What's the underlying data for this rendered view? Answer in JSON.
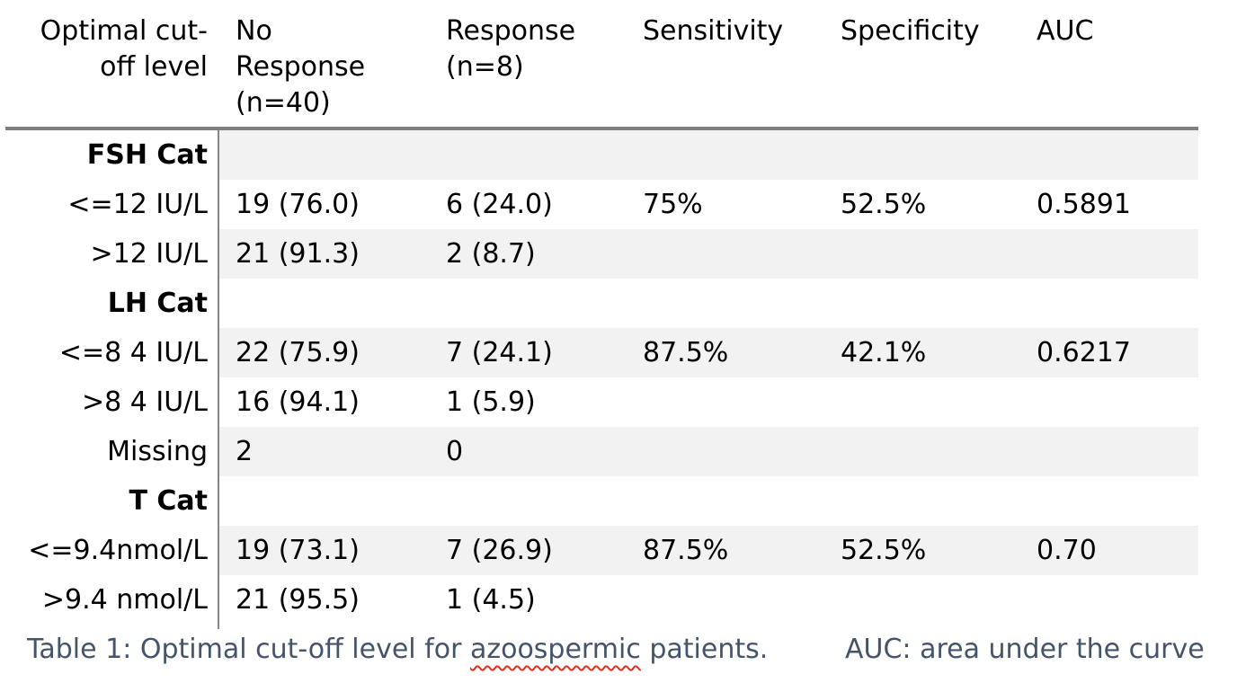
{
  "table": {
    "header": {
      "col1": {
        "lines": [
          "Optimal cut-",
          "off level"
        ]
      },
      "col2": {
        "lines": [
          "No",
          "Response",
          "(n=40)"
        ]
      },
      "col3": {
        "lines": [
          "Response",
          "(n=8)"
        ]
      },
      "col4": {
        "lines": [
          "Sensitivity"
        ]
      },
      "col5": {
        "lines": [
          "Specificity"
        ]
      },
      "col6": {
        "lines": [
          "AUC"
        ]
      }
    },
    "rows": [
      {
        "label": "FSH Cat",
        "cells": [
          "",
          "",
          "",
          "",
          ""
        ]
      },
      {
        "label": "<=12 IU/L",
        "cells": [
          "19 (76.0)",
          "6 (24.0)",
          "75%",
          "52.5%",
          "0.5891"
        ]
      },
      {
        "label": ">12 IU/L",
        "cells": [
          "21 (91.3)",
          "2 (8.7)",
          "",
          "",
          ""
        ]
      },
      {
        "label": "LH Cat",
        "cells": [
          "",
          "",
          "",
          "",
          ""
        ]
      },
      {
        "label": "<=8 4 IU/L",
        "cells": [
          "22 (75.9)",
          "7 (24.1)",
          "87.5%",
          "42.1%",
          "0.6217"
        ]
      },
      {
        "label": ">8 4 IU/L",
        "cells": [
          "16 (94.1)",
          "1 (5.9)",
          "",
          "",
          ""
        ]
      },
      {
        "label": "Missing",
        "cells": [
          "2",
          "0",
          "",
          "",
          ""
        ]
      },
      {
        "label": "T Cat",
        "cells": [
          "",
          "",
          "",
          "",
          ""
        ]
      },
      {
        "label": "<=9.4nmol/L",
        "cells": [
          "19 (73.1)",
          "7 (26.9)",
          "87.5%",
          "52.5%",
          "0.70"
        ]
      },
      {
        "label": ">9.4 nmol/L",
        "cells": [
          "21 (95.5)",
          "1 (4.5)",
          "",
          "",
          ""
        ]
      }
    ]
  },
  "caption": {
    "part1_before": "Table 1: Optimal cut-off level for ",
    "misspelled_word": "azoospermic",
    "part1_after": " patients.",
    "part2": "AUC: area under the curve"
  },
  "colors": {
    "caption_text": "#44546a",
    "row_stripe": "#f2f2f2",
    "table_border": "#7f7f7f",
    "column_divider": "#858585",
    "spellcheck_underline": "#e0301e",
    "body_text": "#000000"
  }
}
